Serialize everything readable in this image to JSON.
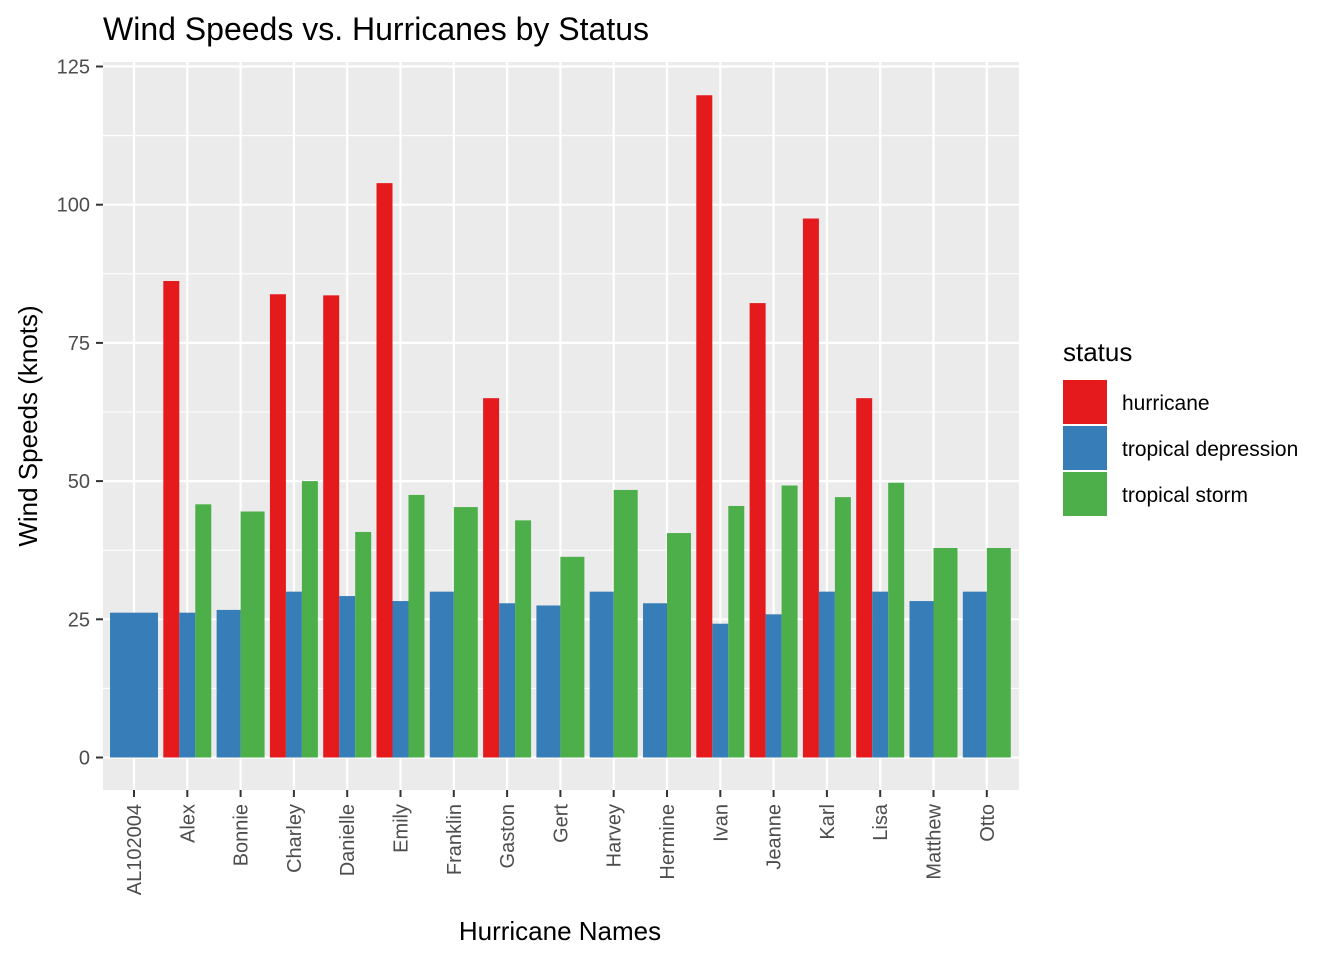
{
  "chart_data": {
    "type": "bar",
    "title": "Wind Speeds vs. Hurricanes by Status",
    "xlabel": "Hurricane Names",
    "ylabel": "Wind Speeds (knots)",
    "ylim": [
      0,
      125
    ],
    "yticks": [
      0,
      25,
      50,
      75,
      100,
      125
    ],
    "grid": true,
    "legend": {
      "title": "status",
      "position": "right"
    },
    "categories": [
      "AL102004",
      "Alex",
      "Bonnie",
      "Charley",
      "Danielle",
      "Emily",
      "Franklin",
      "Gaston",
      "Gert",
      "Harvey",
      "Hermine",
      "Ivan",
      "Jeanne",
      "Karl",
      "Lisa",
      "Matthew",
      "Otto"
    ],
    "series": [
      {
        "name": "hurricane",
        "color": "#E41A1C",
        "values": [
          null,
          86.2,
          null,
          83.8,
          83.6,
          103.9,
          null,
          65,
          null,
          null,
          null,
          119.8,
          82.2,
          97.5,
          65,
          null,
          null
        ]
      },
      {
        "name": "tropical depression",
        "color": "#377EB8",
        "values": [
          26.2,
          26.2,
          26.7,
          30,
          29.2,
          28.3,
          30,
          27.9,
          27.5,
          30,
          27.9,
          24.2,
          25.9,
          30,
          30,
          28.3,
          30
        ]
      },
      {
        "name": "tropical storm",
        "color": "#4DAF4A",
        "values": [
          null,
          45.8,
          44.5,
          50,
          40.8,
          47.5,
          45.3,
          42.9,
          36.3,
          48.4,
          40.6,
          45.5,
          49.2,
          47.1,
          49.7,
          37.9,
          37.9
        ]
      }
    ]
  }
}
